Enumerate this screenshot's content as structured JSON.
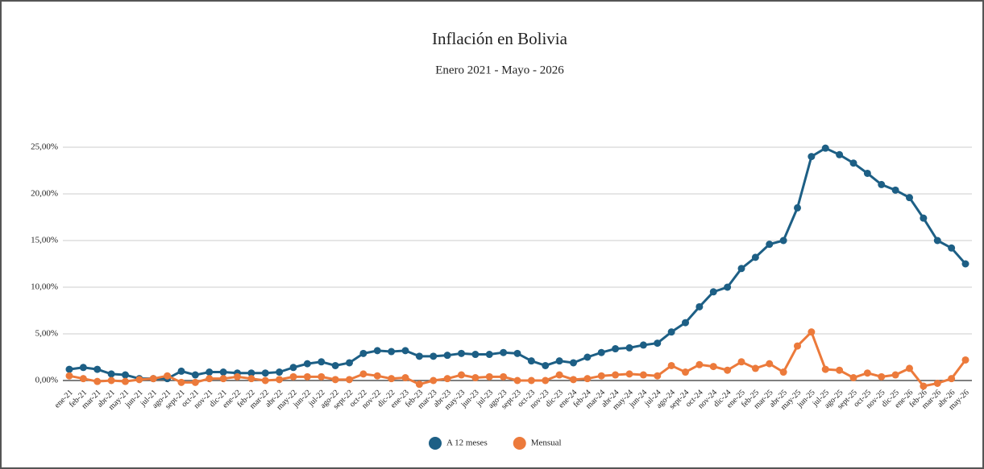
{
  "chart_data": {
    "type": "line",
    "title": "Inflación en Bolivia",
    "subtitle": "Enero 2021 - Mayo - 2026",
    "categories": [
      "ene-21",
      "feb-21",
      "mar-21",
      "abr-21",
      "may-21",
      "jun-21",
      "jul-21",
      "ago-21",
      "sept-21",
      "oct-21",
      "nov-21",
      "dic-21",
      "ene-22",
      "feb-22",
      "mar-22",
      "abr-22",
      "may-22",
      "jun-22",
      "jul-22",
      "ago-22",
      "sept-22",
      "oct-22",
      "nov-22",
      "dic-22",
      "ene-23",
      "feb-23",
      "mar-23",
      "abr-23",
      "may-23",
      "jun-23",
      "jul-23",
      "ago-23",
      "sept-23",
      "oct-23",
      "nov-23",
      "dic-23",
      "ene-24",
      "feb-24",
      "mar-24",
      "abr-24",
      "may-24",
      "jun-24",
      "jul-24",
      "ago-24",
      "sept-24",
      "oct-24",
      "nov-24",
      "dic-24",
      "ene-25",
      "feb-25",
      "mar-25",
      "abr-25",
      "may-25",
      "jun-25",
      "jul-25",
      "ago-25",
      "sept-25",
      "oct-25",
      "nov-25",
      "dic-25",
      "ene-26",
      "feb-26",
      "mar-26",
      "abr-26",
      "may-26"
    ],
    "series": [
      {
        "name": "A 12 meses",
        "color": "#1d5f85",
        "values": [
          1.2,
          1.4,
          1.2,
          0.7,
          0.6,
          0.2,
          0.2,
          0.2,
          1.0,
          0.6,
          0.9,
          0.9,
          0.8,
          0.8,
          0.8,
          0.9,
          1.4,
          1.8,
          2.0,
          1.6,
          1.9,
          2.9,
          3.2,
          3.1,
          3.2,
          2.6,
          2.6,
          2.7,
          2.9,
          2.8,
          2.8,
          3.0,
          2.9,
          2.1,
          1.6,
          2.1,
          1.9,
          2.5,
          3.0,
          3.4,
          3.5,
          3.8,
          4.0,
          5.2,
          6.2,
          7.9,
          9.5,
          10.0,
          12.0,
          13.2,
          14.6,
          15.0,
          18.5,
          24.0,
          24.9,
          24.2,
          23.3,
          22.2,
          21.0,
          20.4,
          19.6,
          17.4,
          15.0,
          14.2,
          12.5
        ]
      },
      {
        "name": "Mensual",
        "color": "#ec7a3b",
        "values": [
          0.5,
          0.2,
          -0.1,
          0.0,
          -0.1,
          0.1,
          0.2,
          0.5,
          -0.2,
          -0.2,
          0.2,
          0.2,
          0.4,
          0.2,
          0.0,
          0.1,
          0.4,
          0.4,
          0.4,
          0.1,
          0.1,
          0.7,
          0.5,
          0.2,
          0.3,
          -0.4,
          0.0,
          0.2,
          0.6,
          0.3,
          0.4,
          0.4,
          0.0,
          0.0,
          0.0,
          0.6,
          0.1,
          0.2,
          0.5,
          0.6,
          0.7,
          0.6,
          0.5,
          1.6,
          0.9,
          1.7,
          1.5,
          1.1,
          2.0,
          1.3,
          1.8,
          0.9,
          3.7,
          5.2,
          1.2,
          1.1,
          0.3,
          0.8,
          0.4,
          0.6,
          1.3,
          -0.6,
          -0.3,
          0.2,
          2.2
        ]
      }
    ],
    "ylim": [
      -1,
      25
    ],
    "yticks": [
      {
        "value": 0,
        "label": "0,00%"
      },
      {
        "value": 5,
        "label": "5,00%"
      },
      {
        "value": 10,
        "label": "10,00%"
      },
      {
        "value": 15,
        "label": "15,00%"
      },
      {
        "value": 20,
        "label": "20,00%"
      },
      {
        "value": 25,
        "label": "25,00%"
      }
    ],
    "grid": true,
    "legend": "bottom"
  }
}
